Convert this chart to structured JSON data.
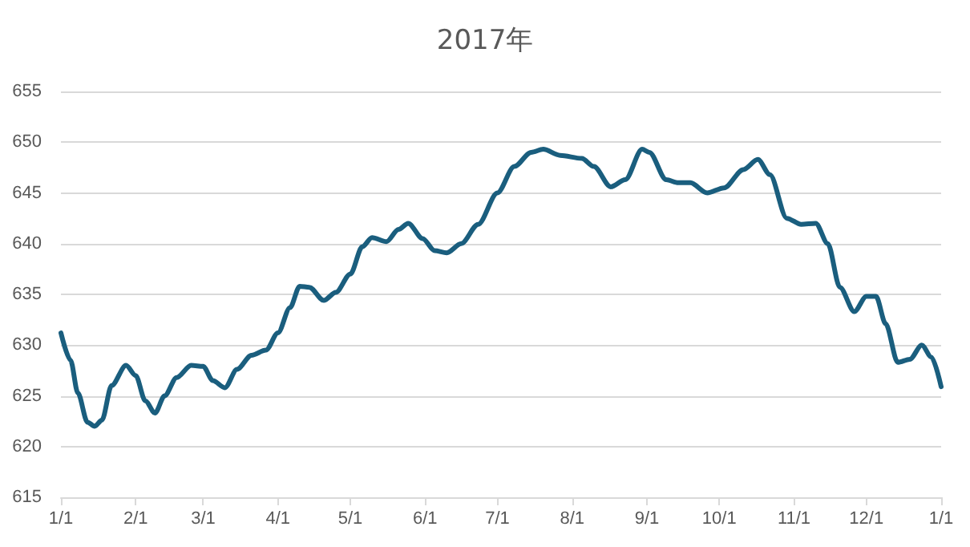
{
  "chart_data": {
    "type": "line",
    "title": "2017年",
    "x": [
      "2017-01-01",
      "2017-01-05",
      "2017-01-08",
      "2017-01-12",
      "2017-01-15",
      "2017-01-18",
      "2017-01-22",
      "2017-01-28",
      "2017-02-01",
      "2017-02-05",
      "2017-02-09",
      "2017-02-13",
      "2017-02-18",
      "2017-02-24",
      "2017-03-01",
      "2017-03-05",
      "2017-03-10",
      "2017-03-15",
      "2017-03-21",
      "2017-03-27",
      "2017-04-01",
      "2017-04-06",
      "2017-04-10",
      "2017-04-14",
      "2017-04-20",
      "2017-04-25",
      "2017-05-01",
      "2017-05-06",
      "2017-05-10",
      "2017-05-16",
      "2017-05-21",
      "2017-05-25",
      "2017-05-31",
      "2017-06-05",
      "2017-06-10",
      "2017-06-16",
      "2017-06-23",
      "2017-07-01",
      "2017-07-08",
      "2017-07-15",
      "2017-07-20",
      "2017-07-27",
      "2017-08-05",
      "2017-08-10",
      "2017-08-17",
      "2017-08-23",
      "2017-08-30",
      "2017-09-02",
      "2017-09-09",
      "2017-09-14",
      "2017-09-19",
      "2017-09-26",
      "2017-10-03",
      "2017-10-11",
      "2017-10-17",
      "2017-10-22",
      "2017-10-29",
      "2017-11-04",
      "2017-11-10",
      "2017-11-15",
      "2017-11-20",
      "2017-11-26",
      "2017-12-01",
      "2017-12-05",
      "2017-12-09",
      "2017-12-14",
      "2017-12-19",
      "2017-12-24",
      "2017-12-28",
      "2018-01-01"
    ],
    "series": [
      {
        "color": "#1a5e7e",
        "values": [
          631.2,
          628.5,
          625.3,
          622.4,
          622.0,
          622.6,
          626.0,
          628.0,
          627.0,
          624.5,
          623.3,
          625.0,
          626.8,
          628.0,
          627.9,
          626.5,
          625.8,
          627.6,
          629.0,
          629.5,
          631.2,
          633.7,
          635.8,
          635.7,
          634.4,
          635.2,
          637.0,
          639.7,
          640.6,
          640.2,
          641.4,
          642.0,
          640.5,
          639.3,
          639.1,
          640.0,
          641.9,
          645.0,
          647.6,
          649.0,
          649.3,
          648.7,
          648.4,
          647.6,
          645.6,
          646.3,
          649.3,
          649.0,
          646.3,
          646.0,
          646.0,
          645.0,
          645.5,
          647.3,
          648.3,
          646.8,
          642.5,
          641.9,
          642.0,
          640.0,
          635.7,
          633.3,
          634.8,
          634.8,
          632.1,
          628.3,
          628.6,
          630.0,
          628.8,
          625.9
        ]
      }
    ],
    "xlim": [
      "2017-01-01",
      "2018-01-01"
    ],
    "xticks": [
      {
        "value": "2017-01-01",
        "label": "1/1"
      },
      {
        "value": "2017-02-01",
        "label": "2/1"
      },
      {
        "value": "2017-03-01",
        "label": "3/1"
      },
      {
        "value": "2017-04-01",
        "label": "4/1"
      },
      {
        "value": "2017-05-01",
        "label": "5/1"
      },
      {
        "value": "2017-06-01",
        "label": "6/1"
      },
      {
        "value": "2017-07-01",
        "label": "7/1"
      },
      {
        "value": "2017-08-01",
        "label": "8/1"
      },
      {
        "value": "2017-09-01",
        "label": "9/1"
      },
      {
        "value": "2017-10-01",
        "label": "10/1"
      },
      {
        "value": "2017-11-01",
        "label": "11/1"
      },
      {
        "value": "2017-12-01",
        "label": "12/1"
      },
      {
        "value": "2018-01-01",
        "label": "1/1"
      }
    ],
    "ylim": [
      615,
      655
    ],
    "yticks": [
      615,
      620,
      625,
      630,
      635,
      640,
      645,
      650,
      655
    ],
    "grid": "y",
    "marker": "none",
    "line_style": "solid"
  }
}
